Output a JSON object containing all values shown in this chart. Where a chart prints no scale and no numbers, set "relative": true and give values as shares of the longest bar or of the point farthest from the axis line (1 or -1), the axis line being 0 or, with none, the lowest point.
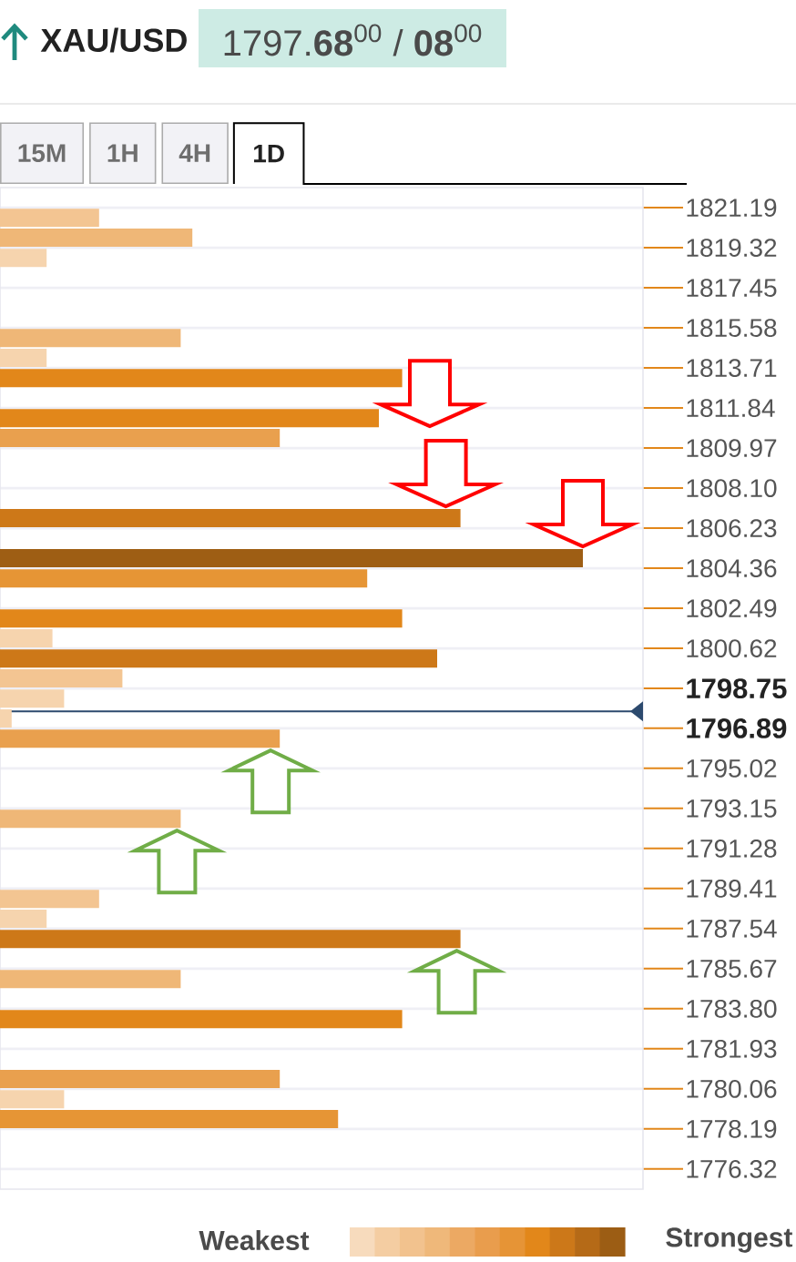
{
  "chart_data": {
    "type": "bar",
    "orientation": "horizontal",
    "relative": true,
    "title": "XAU/USD",
    "subtitle": "1797.**68**$^{00}$ / **08**$^{00}$",
    "x": [
      1820.72,
      1819.79,
      1818.85,
      1815.11,
      1814.18,
      1813.24,
      1811.37,
      1810.44,
      1806.7,
      1804.83,
      1803.89,
      1802.02,
      1801.09,
      1800.15,
      1799.22,
      1798.28,
      1797.35,
      1796.41,
      1792.67,
      1788.93,
      1788.0,
      1787.06,
      1785.19,
      1783.32,
      1780.52,
      1779.58,
      1778.65
    ],
    "values": [
      0.17,
      0.33,
      0.08,
      0.31,
      0.08,
      0.69,
      0.65,
      0.48,
      0.79,
      1,
      0.63,
      0.69,
      0.09,
      0.75,
      0.21,
      0.11,
      0.02,
      0.48,
      0.31,
      0.17,
      0.08,
      0.79,
      0.31,
      0.69,
      0.48,
      0.11,
      0.58
    ],
    "colors": [
      "#f3c592",
      "#efb777",
      "#f6d4ae",
      "#efb777",
      "#f6d4ae",
      "#e2871a",
      "#e2871a",
      "#e9a04e",
      "#cd7818",
      "#9e5e14",
      "#e69535",
      "#e2871a",
      "#f6d4ae",
      "#cd7818",
      "#f3c592",
      "#f6d4ae",
      "#f6d4ae",
      "#e9a04e",
      "#efb777",
      "#f3c592",
      "#f6d4ae",
      "#cd7818",
      "#efb777",
      "#e2871a",
      "#e9a04e",
      "#f6d4ae",
      "#e69535"
    ],
    "ylim": [
      1775.38,
      1822.13
    ],
    "yticks": [
      1821.19,
      1819.32,
      1817.45,
      1815.58,
      1813.71,
      1811.84,
      1809.97,
      {
        "value": 1808.1,
        "label": "1808.10"
      },
      1806.23,
      1804.36,
      1802.49,
      1800.62,
      1798.75,
      1796.89,
      1795.02,
      1793.15,
      1791.28,
      1789.41,
      1787.54,
      1785.67,
      {
        "value": 1783.8,
        "label": "1783.80"
      },
      1781.93,
      1780.06,
      1778.19,
      1776.32
    ],
    "grid": "y",
    "ref_lines": [
      {
        "axis": "y",
        "value": 1797.68,
        "color": "#2c4a6e"
      }
    ],
    "annotations": [
      "15M",
      "1H",
      "4H",
      "1D",
      "Weakest",
      "Strongest"
    ]
  }
}
